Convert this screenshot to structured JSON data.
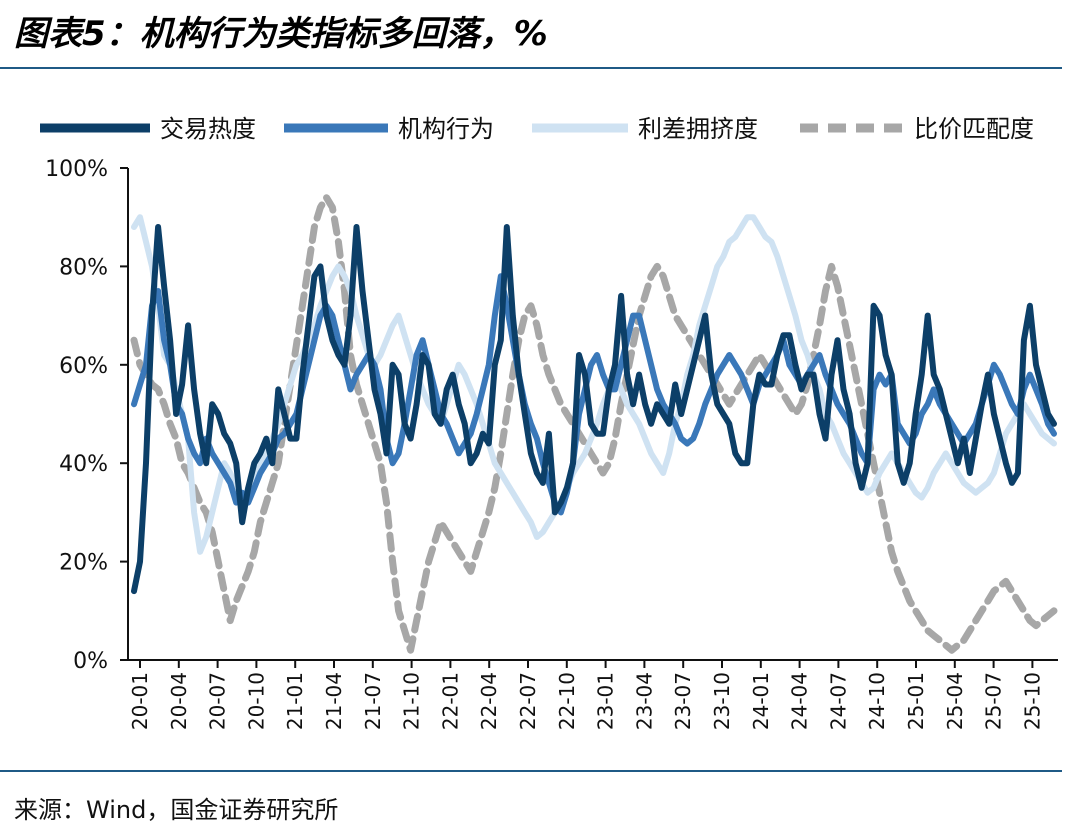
{
  "header": {
    "title": "图表5：机构行为类指标多回落，%"
  },
  "footer": {
    "source": "来源：Wind，国金证券研究所"
  },
  "chart_data": {
    "type": "line",
    "title": "图表5：机构行为类指标多回落，%",
    "xlabel": "",
    "ylabel": "",
    "ylim": [
      0,
      100
    ],
    "yticks": [
      "0%",
      "20%",
      "40%",
      "60%",
      "80%",
      "100%"
    ],
    "legend_position": "top",
    "grid": false,
    "x_ticks": [
      "20-01",
      "20-04",
      "20-07",
      "20-10",
      "21-01",
      "21-04",
      "21-07",
      "21-10",
      "22-01",
      "22-04",
      "22-07",
      "22-10",
      "23-01",
      "23-04",
      "23-07",
      "23-10",
      "24-01",
      "24-04",
      "24-07",
      "24-10",
      "25-01",
      "25-04",
      "25-07",
      "25-10"
    ],
    "series": [
      {
        "name": "交易热度",
        "color": "#0c3f68",
        "dash": "solid",
        "values": [
          14,
          20,
          40,
          70,
          88,
          76,
          65,
          50,
          56,
          68,
          55,
          46,
          40,
          52,
          50,
          46,
          44,
          40,
          28,
          35,
          40,
          42,
          45,
          40,
          55,
          50,
          45,
          45,
          58,
          68,
          78,
          80,
          70,
          65,
          62,
          60,
          70,
          88,
          75,
          65,
          55,
          50,
          42,
          60,
          58,
          48,
          45,
          52,
          62,
          60,
          50,
          48,
          55,
          58,
          52,
          48,
          40,
          42,
          46,
          44,
          60,
          65,
          88,
          70,
          58,
          50,
          42,
          38,
          36,
          46,
          30,
          32,
          35,
          40,
          62,
          58,
          48,
          46,
          46,
          55,
          60,
          74,
          58,
          52,
          58,
          52,
          48,
          52,
          50,
          48,
          56,
          50,
          55,
          60,
          65,
          70,
          58,
          52,
          50,
          48,
          42,
          40,
          40,
          52,
          58,
          56,
          56,
          62,
          66,
          66,
          60,
          55,
          58,
          58,
          50,
          45,
          58,
          65,
          55,
          50,
          40,
          35,
          40,
          72,
          70,
          62,
          58,
          40,
          36,
          40,
          50,
          58,
          70,
          58,
          55,
          50,
          45,
          40,
          45,
          38,
          45,
          52,
          58,
          50,
          45,
          40,
          36,
          38,
          65,
          72,
          60,
          55,
          50,
          48
        ]
      },
      {
        "name": "机构行为",
        "color": "#3a78b9",
        "dash": "solid",
        "values": [
          52,
          56,
          60,
          72,
          75,
          65,
          60,
          52,
          50,
          45,
          42,
          40,
          45,
          42,
          40,
          38,
          36,
          32,
          34,
          32,
          35,
          38,
          40,
          42,
          45,
          46,
          48,
          50,
          55,
          60,
          65,
          70,
          72,
          70,
          65,
          60,
          55,
          58,
          60,
          62,
          60,
          55,
          45,
          40,
          42,
          48,
          55,
          62,
          65,
          60,
          55,
          50,
          48,
          45,
          42,
          44,
          46,
          50,
          55,
          60,
          70,
          78,
          72,
          65,
          58,
          52,
          48,
          45,
          40,
          36,
          32,
          30,
          34,
          40,
          50,
          55,
          60,
          62,
          58,
          55,
          55,
          60,
          65,
          70,
          70,
          65,
          60,
          55,
          52,
          50,
          48,
          45,
          44,
          45,
          48,
          52,
          55,
          58,
          60,
          62,
          60,
          58,
          55,
          52,
          56,
          58,
          60,
          62,
          65,
          60,
          58,
          56,
          58,
          60,
          62,
          58,
          55,
          52,
          50,
          48,
          45,
          42,
          40,
          55,
          58,
          56,
          58,
          48,
          46,
          44,
          46,
          50,
          52,
          55,
          52,
          50,
          48,
          46,
          44,
          46,
          48,
          52,
          56,
          60,
          58,
          55,
          52,
          50,
          55,
          58,
          55,
          52,
          48,
          46
        ]
      },
      {
        "name": "利差拥挤度",
        "color": "#cfe2f2",
        "dash": "solid",
        "values": [
          88,
          90,
          85,
          80,
          72,
          62,
          60,
          55,
          50,
          45,
          30,
          22,
          25,
          30,
          35,
          40,
          38,
          35,
          32,
          35,
          38,
          40,
          42,
          45,
          48,
          52,
          56,
          60,
          62,
          65,
          68,
          72,
          75,
          78,
          80,
          78,
          75,
          70,
          66,
          62,
          60,
          62,
          65,
          68,
          70,
          66,
          62,
          58,
          55,
          52,
          50,
          48,
          52,
          56,
          60,
          58,
          55,
          52,
          48,
          44,
          40,
          38,
          36,
          34,
          32,
          30,
          28,
          25,
          26,
          28,
          30,
          32,
          35,
          38,
          40,
          42,
          45,
          48,
          52,
          55,
          58,
          55,
          52,
          50,
          48,
          45,
          42,
          40,
          38,
          42,
          48,
          52,
          58,
          62,
          68,
          72,
          76,
          80,
          82,
          85,
          86,
          88,
          90,
          90,
          88,
          86,
          85,
          82,
          78,
          74,
          70,
          65,
          62,
          58,
          55,
          50,
          48,
          45,
          42,
          40,
          38,
          36,
          34,
          35,
          38,
          40,
          42,
          40,
          38,
          36,
          34,
          33,
          35,
          38,
          40,
          42,
          40,
          38,
          36,
          35,
          34,
          35,
          36,
          38,
          42,
          46,
          48,
          50,
          52,
          50,
          48,
          46,
          45,
          44
        ]
      },
      {
        "name": "比价匹配度",
        "color": "#a7a7a7",
        "dash": "dashed",
        "values": [
          65,
          60,
          58,
          56,
          55,
          52,
          48,
          45,
          40,
          38,
          35,
          32,
          30,
          26,
          20,
          14,
          8,
          12,
          15,
          18,
          22,
          28,
          32,
          36,
          40,
          48,
          56,
          64,
          72,
          80,
          88,
          92,
          94,
          92,
          85,
          75,
          62,
          56,
          52,
          48,
          44,
          40,
          32,
          20,
          10,
          6,
          2,
          8,
          14,
          20,
          24,
          28,
          26,
          24,
          22,
          20,
          18,
          22,
          26,
          30,
          35,
          42,
          50,
          58,
          65,
          70,
          72,
          68,
          62,
          58,
          55,
          52,
          50,
          48,
          46,
          44,
          42,
          40,
          38,
          40,
          45,
          52,
          58,
          64,
          70,
          74,
          78,
          80,
          78,
          74,
          70,
          68,
          66,
          64,
          62,
          60,
          58,
          56,
          54,
          52,
          54,
          56,
          58,
          60,
          62,
          60,
          58,
          56,
          54,
          52,
          50,
          52,
          56,
          62,
          68,
          75,
          80,
          76,
          70,
          64,
          58,
          52,
          46,
          40,
          34,
          28,
          22,
          18,
          15,
          12,
          10,
          8,
          6,
          5,
          4,
          3,
          2,
          3,
          4,
          6,
          8,
          10,
          12,
          14,
          15,
          16,
          14,
          12,
          10,
          8,
          7,
          8,
          9,
          10
        ]
      }
    ]
  }
}
